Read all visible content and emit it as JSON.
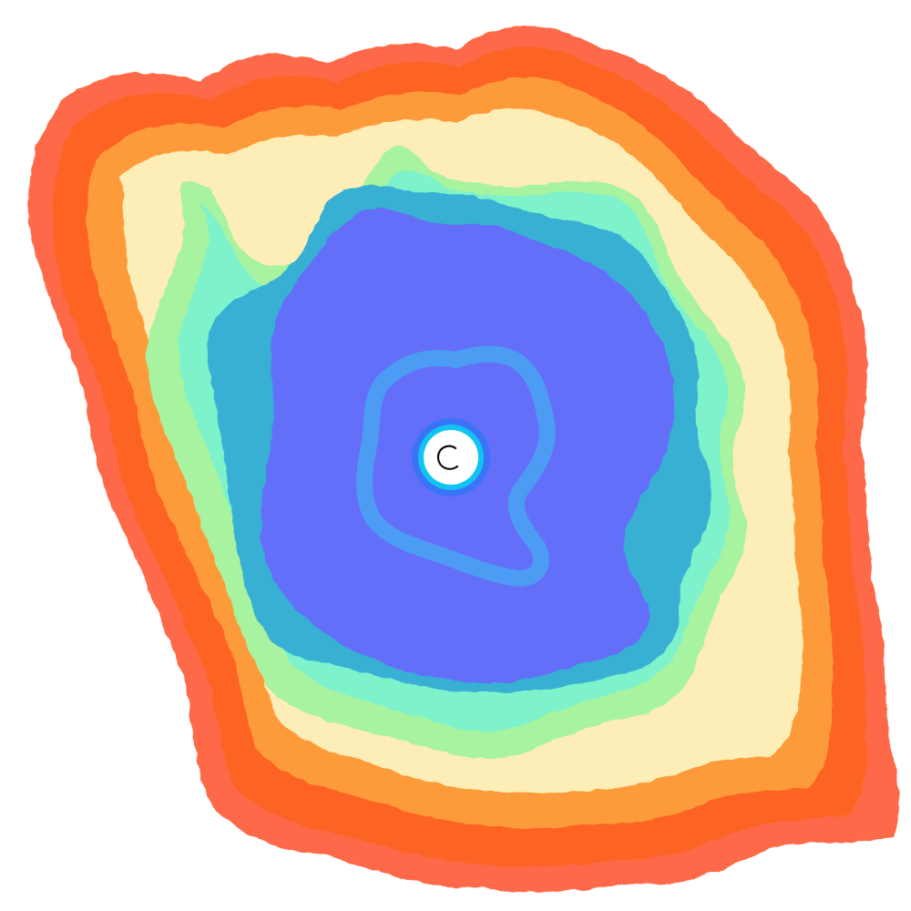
{
  "canvas": {
    "background": "#ffffff"
  },
  "palette": {
    "outer_red": "#fe6b49",
    "deep_orange": "#fd6424",
    "orange": "#fd9b3b",
    "cream": "#fdedb6",
    "light_green": "#a8f3a0",
    "mint": "#7ef2cb",
    "teal": "#38b0d4",
    "indigo": "#636ef9",
    "sky_blue": "#4d9cf4",
    "ring_blue": "#3a74f6",
    "ring_cyan": "#10c4f2",
    "center_white": "#ffffff",
    "glyph": "#111111"
  },
  "bands": [
    {
      "name": "outer-red",
      "color_key": "outer_red"
    },
    {
      "name": "deep-orange",
      "color_key": "deep_orange"
    },
    {
      "name": "orange",
      "color_key": "orange"
    },
    {
      "name": "cream",
      "color_key": "cream"
    },
    {
      "name": "light-green",
      "color_key": "light_green"
    },
    {
      "name": "mint",
      "color_key": "mint"
    },
    {
      "name": "teal",
      "color_key": "teal"
    },
    {
      "name": "indigo",
      "color_key": "indigo"
    }
  ],
  "center_glyph": {
    "icon": "open-circle-icon"
  }
}
